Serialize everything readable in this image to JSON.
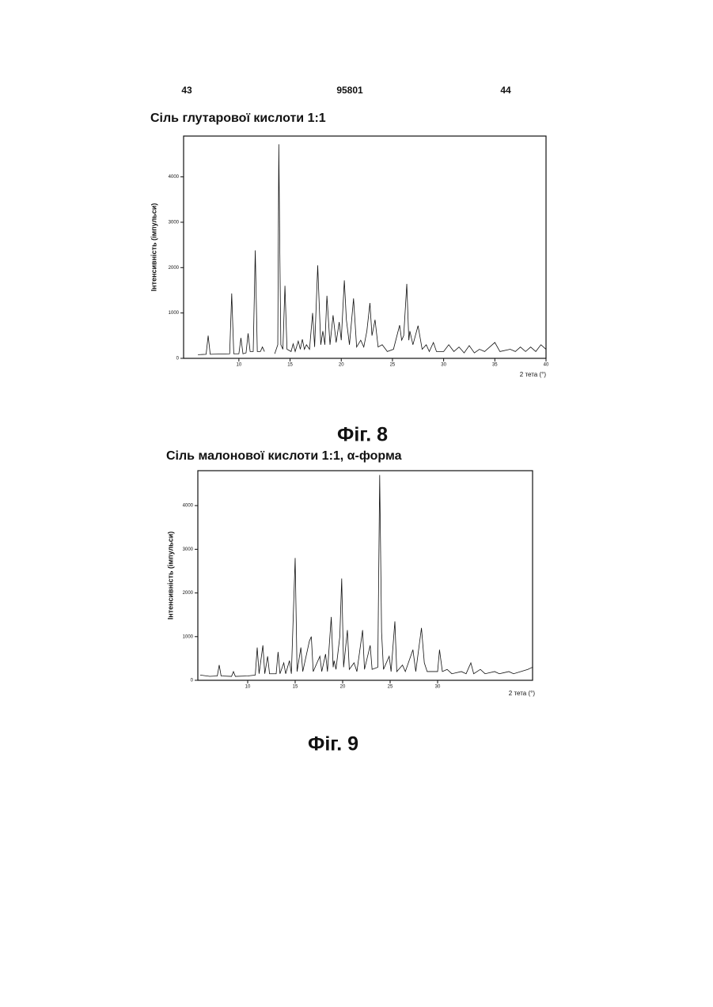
{
  "header": {
    "left": "43",
    "center": "95801",
    "right": "44"
  },
  "chart_data": [
    {
      "type": "line",
      "title": "Сіль глутарової кислоти 1:1",
      "caption": "Фіг. 8",
      "y_label": "Інтенсивність (імпульси)",
      "x_label": "2 тета (°)",
      "color": "#111111",
      "xlim": [
        4.6,
        40
      ],
      "ylim": [
        0,
        4900
      ],
      "xticks": [
        10,
        15,
        20,
        25,
        30,
        35,
        40
      ],
      "yticks": [
        0,
        1000,
        2000,
        3000,
        4000
      ],
      "x": [
        6.0,
        6.8,
        7.0,
        7.2,
        9.1,
        9.3,
        9.5,
        10.0,
        10.2,
        10.4,
        10.7,
        10.9,
        11.1,
        11.4,
        11.6,
        11.8,
        12.1,
        12.3,
        12.5,
        12.9,
        13.5,
        13.8,
        13.9,
        14.0,
        14.1,
        14.3,
        14.5,
        14.7,
        15.1,
        15.3,
        15.5,
        15.8,
        16.0,
        16.2,
        16.4,
        16.6,
        16.9,
        17.2,
        17.4,
        17.7,
        18.0,
        18.2,
        18.4,
        18.6,
        18.9,
        19.2,
        19.5,
        19.8,
        20.0,
        20.3,
        20.5,
        20.8,
        21.2,
        21.5,
        21.9,
        22.2,
        22.5,
        22.8,
        23.0,
        23.3,
        23.6,
        24.0,
        24.5,
        25.1,
        25.7,
        25.9,
        26.1,
        26.4,
        26.6,
        26.7,
        27.0,
        27.5,
        27.9,
        28.3,
        28.6,
        29.0,
        29.3,
        30.0,
        30.5,
        31.0,
        31.5,
        32.0,
        32.5,
        33.0,
        33.5,
        34.0,
        35.0,
        35.5,
        36.5,
        37.0,
        37.5,
        38.0,
        38.5,
        39.0,
        39.5,
        40.0
      ],
      "values": [
        80,
        90,
        500,
        90,
        100,
        1430,
        100,
        100,
        450,
        100,
        120,
        550,
        150,
        150,
        2380,
        150,
        150,
        250,
        150,
        null,
        100,
        300,
        4720,
        2300,
        300,
        200,
        1600,
        200,
        150,
        320,
        150,
        380,
        200,
        420,
        200,
        300,
        200,
        1000,
        250,
        2050,
        300,
        600,
        300,
        1380,
        300,
        950,
        350,
        800,
        400,
        1720,
        850,
        300,
        1320,
        250,
        400,
        250,
        600,
        1220,
        500,
        850,
        250,
        300,
        150,
        200,
        730,
        400,
        500,
        1640,
        400,
        600,
        300,
        720,
        200,
        300,
        150,
        350,
        150,
        150,
        300,
        150,
        250,
        120,
        280,
        120,
        200,
        150,
        350,
        150,
        200,
        150,
        250,
        150,
        250,
        150,
        300,
        200
      ]
    },
    {
      "type": "line",
      "title": "Сіль малонової кислоти 1:1, α-форма",
      "caption": "Фіг. 9",
      "y_label": "Інтенсивність (імпульси)",
      "x_label": "2 тета (°)",
      "color": "#111111",
      "xlim": [
        4.75,
        40
      ],
      "ylim": [
        0,
        4800
      ],
      "xticks": [
        10,
        15,
        20,
        25,
        30
      ],
      "yticks": [
        0,
        1000,
        2000,
        3000,
        4000
      ],
      "x": [
        5.0,
        6.0,
        6.8,
        7.0,
        7.2,
        8.3,
        8.5,
        8.7,
        10.0,
        10.8,
        11.0,
        11.2,
        11.6,
        11.8,
        12.1,
        12.3,
        13.0,
        13.2,
        13.4,
        13.8,
        14.0,
        14.4,
        14.6,
        15.0,
        15.2,
        15.6,
        15.8,
        16.5,
        16.7,
        16.9,
        17.6,
        17.8,
        18.2,
        18.4,
        18.8,
        19.0,
        19.1,
        19.3,
        19.7,
        19.9,
        20.1,
        20.5,
        20.7,
        21.2,
        21.5,
        22.1,
        22.3,
        22.9,
        23.1,
        23.7,
        23.9,
        24.1,
        24.3,
        24.9,
        25.1,
        25.5,
        25.7,
        26.3,
        26.6,
        27.4,
        27.7,
        28.3,
        28.6,
        28.9,
        30.0,
        30.2,
        30.5,
        31.0,
        31.5,
        32.5,
        33.0,
        33.5,
        33.8,
        34.5,
        35.0,
        36.0,
        36.5,
        37.5,
        38.0,
        39.5,
        40.0
      ],
      "values": [
        120,
        90,
        100,
        350,
        100,
        90,
        200,
        90,
        100,
        120,
        750,
        150,
        800,
        150,
        550,
        150,
        150,
        650,
        150,
        400,
        150,
        450,
        150,
        2800,
        200,
        750,
        200,
        900,
        1000,
        200,
        550,
        200,
        600,
        200,
        1450,
        300,
        450,
        250,
        1000,
        2330,
        300,
        1150,
        250,
        400,
        200,
        1150,
        250,
        800,
        250,
        300,
        4700,
        1100,
        250,
        550,
        200,
        1350,
        200,
        350,
        200,
        700,
        200,
        1200,
        400,
        200,
        200,
        700,
        200,
        250,
        150,
        200,
        150,
        400,
        150,
        250,
        150,
        200,
        150,
        200,
        150,
        250,
        300
      ]
    }
  ]
}
